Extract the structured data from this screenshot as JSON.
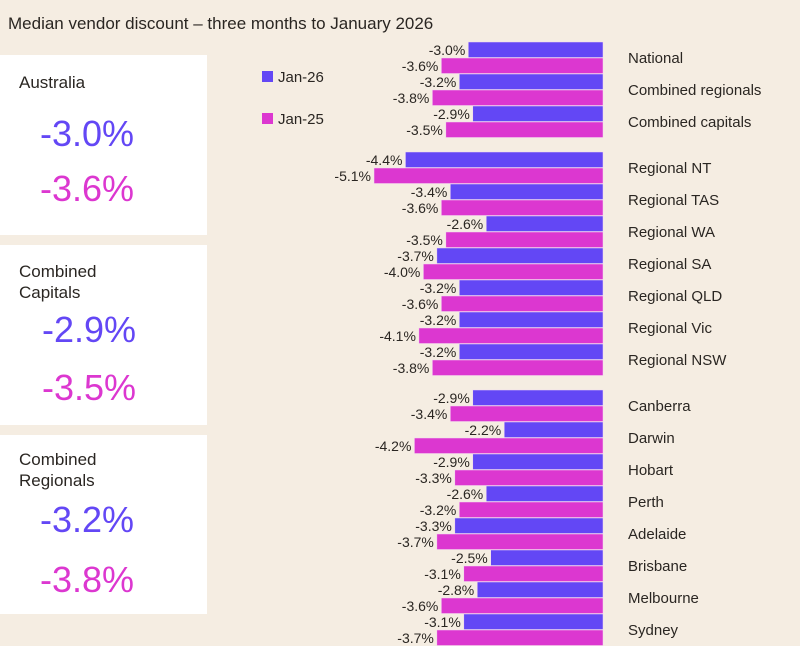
{
  "title": "Median vendor discount – three months to January 2026",
  "panels": [
    {
      "title": "Australia",
      "jan26": "-3.0%",
      "jan25": "-3.6%"
    },
    {
      "title": "Combined Capitals",
      "jan26": "-2.9%",
      "jan25": "-3.5%"
    },
    {
      "title": "Combined Regionals",
      "jan26": "-3.2%",
      "jan25": "-3.8%"
    }
  ],
  "colors": {
    "jan26": "#6347f5",
    "jan25": "#dc37d0",
    "background": "#f5ede2"
  },
  "chart_data": {
    "type": "bar",
    "orientation": "horizontal",
    "categories": [
      "National",
      "Combined regionals",
      "Combined capitals",
      "Regional NT",
      "Regional TAS",
      "Regional WA",
      "Regional SA",
      "Regional QLD",
      "Regional Vic",
      "Regional NSW",
      "Canberra",
      "Darwin",
      "Hobart",
      "Perth",
      "Adelaide",
      "Brisbane",
      "Melbourne",
      "Sydney"
    ],
    "groups": [
      3,
      7,
      8
    ],
    "series": [
      {
        "name": "Jan-26",
        "values": [
          -3.0,
          -3.2,
          -2.9,
          -4.4,
          -3.4,
          -2.6,
          -3.7,
          -3.2,
          -3.2,
          -3.2,
          -2.9,
          -2.2,
          -2.9,
          -2.6,
          -3.3,
          -2.5,
          -2.8,
          -3.1
        ]
      },
      {
        "name": "Jan-25",
        "values": [
          -3.6,
          -3.8,
          -3.5,
          -5.1,
          -3.6,
          -3.5,
          -4.0,
          -3.6,
          -4.1,
          -3.8,
          -3.4,
          -4.2,
          -3.3,
          -3.2,
          -3.7,
          -3.1,
          -3.6,
          -3.7
        ]
      }
    ],
    "legend": "top-left",
    "grid": false,
    "data_labels": true
  }
}
